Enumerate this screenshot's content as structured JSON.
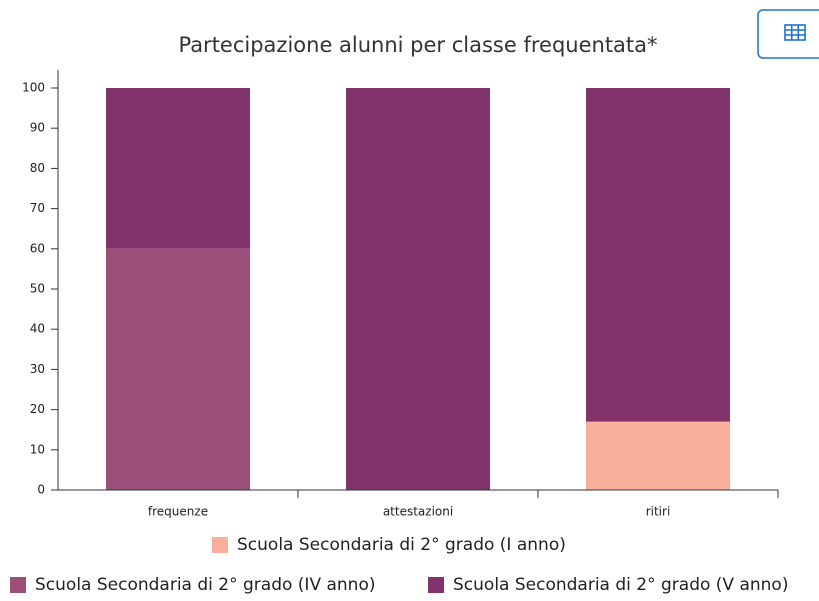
{
  "chart_data": {
    "type": "bar",
    "stacked": true,
    "title": "Partecipazione alunni per classe frequentata*",
    "categories": [
      "frequenze",
      "attestazioni",
      "ritiri"
    ],
    "series": [
      {
        "name": "Scuola Secondaria di 2° grado (I anno)",
        "color": "#f8b09c",
        "values": [
          0,
          0,
          17
        ]
      },
      {
        "name": "Scuola Secondaria di 2° grado (IV anno)",
        "color": "#9c5079",
        "values": [
          60,
          0,
          0
        ]
      },
      {
        "name": "Scuola Secondaria di 2° grado (V anno)",
        "color": "#83336c",
        "values": [
          40,
          100,
          83
        ]
      }
    ],
    "ylim": [
      0,
      100
    ],
    "yticks": [
      0,
      10,
      20,
      30,
      40,
      50,
      60,
      70,
      80,
      90,
      100
    ]
  }
}
